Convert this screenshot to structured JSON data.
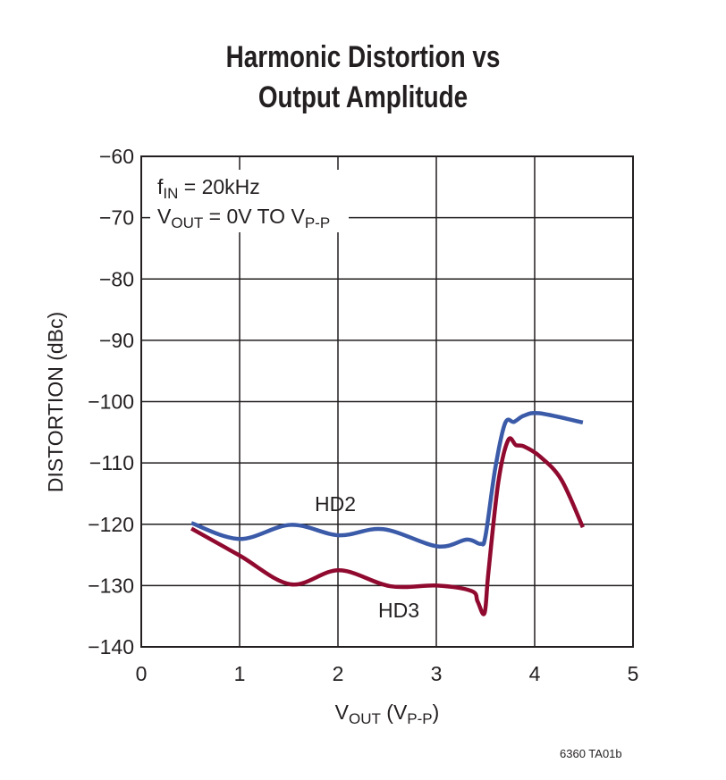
{
  "chart_data": {
    "type": "line",
    "title": [
      "Harmonic Distortion vs",
      "Output Amplitude"
    ],
    "xlabel": {
      "main": "V",
      "sub": "OUT",
      "rest": " (V",
      "sub2": "P-P",
      "end": ")"
    },
    "ylabel": "DISTORTION (dBc)",
    "xlim": [
      0,
      5
    ],
    "ylim": [
      -140,
      -60
    ],
    "xticks": [
      0,
      1,
      2,
      3,
      4,
      5
    ],
    "yticks": [
      -60,
      -70,
      -80,
      -90,
      -100,
      -110,
      -120,
      -130,
      -140
    ],
    "xtick_labels": [
      "0",
      "1",
      "2",
      "3",
      "4",
      "5"
    ],
    "ytick_labels": [
      "−60",
      "−70",
      "−80",
      "−90",
      "−100",
      "−110",
      "−120",
      "−130",
      "−140"
    ],
    "grid": true,
    "annotations": {
      "line1": {
        "main": "f",
        "sub": "IN",
        "rest": " = 20kHz"
      },
      "line2": {
        "main": "V",
        "sub": "OUT",
        "rest": " = 0V TO V",
        "sub2": "P-P"
      }
    },
    "series": [
      {
        "name": "HD2",
        "color": "#3b5ba9",
        "x": [
          0.51,
          1.0,
          1.52,
          2.01,
          2.46,
          3.01,
          3.31,
          3.45,
          3.5,
          3.6,
          3.7,
          3.79,
          3.89,
          4.05,
          4.49
        ],
        "y": [
          -119.8,
          -122.4,
          -120.1,
          -121.8,
          -120.8,
          -123.6,
          -122.5,
          -123.2,
          -121.9,
          -110.8,
          -103.5,
          -103.3,
          -102.3,
          -101.9,
          -103.4
        ]
      },
      {
        "name": "HD3",
        "color": "#900a2f",
        "x": [
          0.51,
          1.0,
          1.52,
          2.01,
          2.53,
          3.01,
          3.36,
          3.42,
          3.49,
          3.53,
          3.63,
          3.73,
          3.81,
          3.89,
          4.05,
          4.27,
          4.49
        ],
        "y": [
          -120.7,
          -125.1,
          -129.8,
          -127.5,
          -130.1,
          -130.0,
          -130.9,
          -132.6,
          -134.5,
          -127.8,
          -113.2,
          -106.3,
          -107.1,
          -107.3,
          -108.9,
          -112.7,
          -120.5
        ]
      }
    ]
  },
  "footer": "6360 TA01b"
}
